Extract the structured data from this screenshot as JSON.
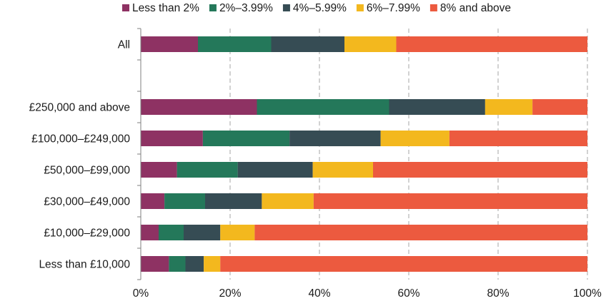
{
  "chart_data": {
    "type": "bar",
    "orientation": "horizontal",
    "stacked": true,
    "title": "",
    "xlabel": "",
    "ylabel": "",
    "xlim": [
      0,
      100
    ],
    "x_ticks": [
      "0%",
      "20%",
      "40%",
      "60%",
      "80%",
      "100%"
    ],
    "grid": true,
    "legend_position": "top",
    "categories": [
      "All",
      "",
      "£250,000 and above",
      "£100,000–£249,000",
      "£50,000–£99,000",
      "£30,000–£49,000",
      "£10,000–£29,000",
      "Less than £10,000"
    ],
    "series": [
      {
        "name": "Less than 2%",
        "color": "#8e3263",
        "values": [
          12.8,
          null,
          26.0,
          13.9,
          8.1,
          5.3,
          4.0,
          6.3
        ]
      },
      {
        "name": "2%–3.99%",
        "color": "#24785a",
        "values": [
          16.4,
          null,
          29.6,
          19.4,
          13.6,
          9.1,
          5.6,
          3.7
        ]
      },
      {
        "name": "4%–5.99%",
        "color": "#364c54",
        "values": [
          16.4,
          null,
          21.5,
          20.4,
          16.8,
          12.7,
          8.2,
          4.1
        ]
      },
      {
        "name": "6%–7.99%",
        "color": "#f3b81e",
        "values": [
          11.6,
          null,
          10.6,
          15.4,
          13.5,
          11.6,
          7.7,
          3.7
        ]
      },
      {
        "name": "8% and above",
        "color": "#ec5a3f",
        "values": [
          42.8,
          null,
          12.3,
          30.9,
          48.0,
          61.3,
          74.5,
          82.2
        ]
      }
    ]
  }
}
